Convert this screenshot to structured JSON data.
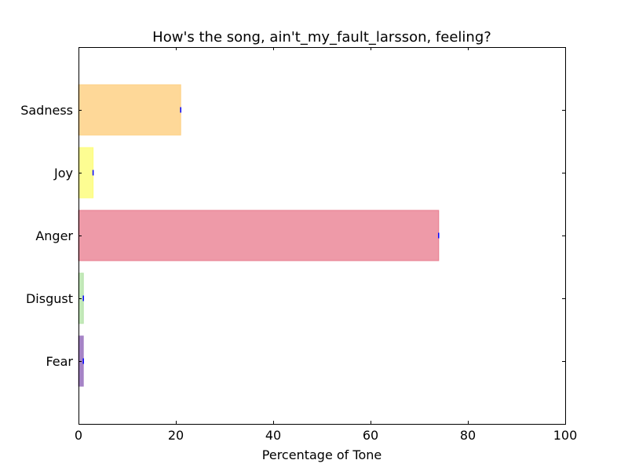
{
  "chart_data": {
    "type": "bar",
    "orientation": "horizontal",
    "title": "How's the song, ain't_my_fault_larsson, feeling?",
    "xlabel": "Percentage of Tone",
    "ylabel": "",
    "xlim": [
      0,
      100
    ],
    "xticks": [
      "0",
      "20",
      "40",
      "60",
      "80",
      "100"
    ],
    "categories": [
      "Fear",
      "Disgust",
      "Anger",
      "Joy",
      "Sadness"
    ],
    "values": [
      1,
      1,
      74,
      3,
      21
    ],
    "colors": [
      "#a583c6",
      "#c3e9b9",
      "#ee9aa8",
      "#fdfd92",
      "#fed898"
    ],
    "edge_colors": [
      "#a583c6",
      "#b5e2a8",
      "#e77b8c",
      "#fdfd7c",
      "#fdd084"
    ],
    "error_marker_color": "#0000ff",
    "grid": false,
    "legend": "none"
  }
}
